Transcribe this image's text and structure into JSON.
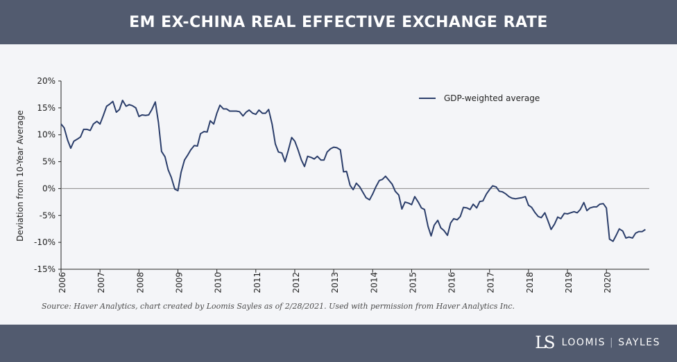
{
  "title": "EM EX-CHINA REAL EFFECTIVE EXCHANGE RATE",
  "source": "Source: Haver Analytics, chart created by Loomis Sayles as of 2/28/2021. Used with permission from Haver Analytics Inc.",
  "brand": {
    "logo": "LS",
    "name_left": "LOOMIS",
    "name_right": "SAYLES"
  },
  "colors": {
    "header_bg": "#525b6f",
    "line": "#2a3d6a",
    "background": "#f4f5f8"
  },
  "chart_data": {
    "type": "line",
    "title": "EM EX-CHINA REAL EFFECTIVE EXCHANGE RATE",
    "xlabel": "",
    "ylabel": "Deviation from 10-Year Average",
    "xlim": [
      2006,
      2021.1
    ],
    "ylim": [
      -15,
      20
    ],
    "yticks": [
      20,
      15,
      10,
      5,
      0,
      -5,
      -10,
      -15
    ],
    "ytick_labels": [
      "20%",
      "15%",
      "10%",
      "5%",
      "0%",
      "-5%",
      "-10%",
      "-15%"
    ],
    "xticks": [
      2006,
      2007,
      2008,
      2009,
      2010,
      2011,
      2012,
      2013,
      2014,
      2015,
      2016,
      2017,
      2018,
      2019,
      2020
    ],
    "xtick_labels": [
      "2006",
      "2007",
      "2008",
      "2009",
      "2010",
      "2011",
      "2012",
      "2013",
      "2014",
      "2015",
      "2016",
      "2017",
      "2018",
      "2019",
      "2020"
    ],
    "legend": {
      "position": "top-right"
    },
    "series": [
      {
        "name": "GDP-weighted average",
        "x": [
          2006.0,
          2006.08,
          2006.17,
          2006.25,
          2006.33,
          2006.42,
          2006.5,
          2006.58,
          2006.67,
          2006.75,
          2006.83,
          2006.92,
          2007.0,
          2007.08,
          2007.17,
          2007.25,
          2007.33,
          2007.42,
          2007.5,
          2007.58,
          2007.67,
          2007.75,
          2007.83,
          2007.92,
          2008.0,
          2008.08,
          2008.17,
          2008.25,
          2008.33,
          2008.42,
          2008.5,
          2008.58,
          2008.67,
          2008.75,
          2008.83,
          2008.92,
          2009.0,
          2009.08,
          2009.17,
          2009.25,
          2009.33,
          2009.42,
          2009.5,
          2009.58,
          2009.67,
          2009.75,
          2009.83,
          2009.92,
          2010.0,
          2010.08,
          2010.17,
          2010.25,
          2010.33,
          2010.42,
          2010.5,
          2010.58,
          2010.67,
          2010.75,
          2010.83,
          2010.92,
          2011.0,
          2011.08,
          2011.17,
          2011.25,
          2011.33,
          2011.42,
          2011.5,
          2011.58,
          2011.67,
          2011.75,
          2011.83,
          2011.92,
          2012.0,
          2012.08,
          2012.17,
          2012.25,
          2012.33,
          2012.42,
          2012.5,
          2012.58,
          2012.67,
          2012.75,
          2012.83,
          2012.92,
          2013.0,
          2013.08,
          2013.17,
          2013.25,
          2013.33,
          2013.42,
          2013.5,
          2013.58,
          2013.67,
          2013.75,
          2013.83,
          2013.92,
          2014.0,
          2014.08,
          2014.17,
          2014.25,
          2014.33,
          2014.42,
          2014.5,
          2014.58,
          2014.67,
          2014.75,
          2014.83,
          2014.92,
          2015.0,
          2015.08,
          2015.17,
          2015.25,
          2015.33,
          2015.42,
          2015.5,
          2015.58,
          2015.67,
          2015.75,
          2015.83,
          2015.92,
          2016.0,
          2016.08,
          2016.17,
          2016.25,
          2016.33,
          2016.42,
          2016.5,
          2016.58,
          2016.67,
          2016.75,
          2016.83,
          2016.92,
          2017.0,
          2017.08,
          2017.17,
          2017.25,
          2017.33,
          2017.42,
          2017.5,
          2017.58,
          2017.67,
          2017.75,
          2017.83,
          2017.92,
          2018.0,
          2018.08,
          2018.17,
          2018.25,
          2018.33,
          2018.42,
          2018.5,
          2018.58,
          2018.67,
          2018.75,
          2018.83,
          2018.92,
          2019.0,
          2019.08,
          2019.17,
          2019.25,
          2019.33,
          2019.42,
          2019.5,
          2019.58,
          2019.67,
          2019.75,
          2019.83,
          2019.92,
          2020.0,
          2020.08,
          2020.17,
          2020.25,
          2020.33,
          2020.42,
          2020.5,
          2020.58,
          2020.67,
          2020.75,
          2020.83,
          2020.92,
          2021.0
        ],
        "values": [
          12.0,
          11.3,
          9.0,
          7.5,
          8.8,
          9.2,
          9.6,
          11.0,
          11.0,
          10.8,
          12.0,
          12.5,
          12.0,
          13.5,
          15.3,
          15.7,
          16.2,
          14.2,
          14.7,
          16.4,
          15.3,
          15.6,
          15.4,
          15.0,
          13.4,
          13.7,
          13.6,
          13.7,
          14.7,
          16.1,
          12.3,
          6.9,
          5.9,
          3.5,
          2.1,
          -0.1,
          -0.4,
          3.0,
          5.3,
          6.2,
          7.2,
          8.0,
          7.9,
          10.2,
          10.6,
          10.5,
          12.6,
          12.0,
          14.0,
          15.5,
          14.8,
          14.8,
          14.4,
          14.4,
          14.4,
          14.3,
          13.5,
          14.2,
          14.6,
          14.0,
          13.8,
          14.6,
          14.0,
          14.0,
          14.7,
          11.9,
          8.3,
          6.8,
          6.6,
          5.0,
          7.0,
          9.5,
          8.8,
          7.3,
          5.3,
          4.1,
          6.0,
          5.8,
          5.5,
          6.0,
          5.3,
          5.3,
          6.8,
          7.4,
          7.7,
          7.6,
          7.2,
          3.1,
          3.2,
          0.6,
          -0.2,
          1.0,
          0.3,
          -0.7,
          -1.7,
          -2.1,
          -1.0,
          0.3,
          1.5,
          1.7,
          2.3,
          1.5,
          0.8,
          -0.5,
          -1.2,
          -3.8,
          -2.5,
          -2.7,
          -3.0,
          -1.5,
          -2.5,
          -3.6,
          -3.9,
          -7.0,
          -8.8,
          -6.8,
          -5.9,
          -7.3,
          -7.8,
          -8.7,
          -6.4,
          -5.6,
          -5.8,
          -5.2,
          -3.5,
          -3.6,
          -3.9,
          -2.9,
          -3.6,
          -2.4,
          -2.3,
          -1.0,
          -0.2,
          0.5,
          0.3,
          -0.5,
          -0.6,
          -1.0,
          -1.5,
          -1.8,
          -1.9,
          -1.8,
          -1.7,
          -1.5,
          -3.1,
          -3.5,
          -4.5,
          -5.2,
          -5.4,
          -4.5,
          -6.0,
          -7.6,
          -6.6,
          -5.3,
          -5.6,
          -4.6,
          -4.7,
          -4.5,
          -4.3,
          -4.5,
          -3.9,
          -2.6,
          -4.1,
          -3.6,
          -3.4,
          -3.4,
          -2.9,
          -2.8,
          -3.6,
          -9.4,
          -9.8,
          -8.7,
          -7.5,
          -7.9,
          -9.2,
          -9.0,
          -9.2,
          -8.3,
          -8.0,
          -8.0,
          -7.6
        ]
      }
    ]
  }
}
